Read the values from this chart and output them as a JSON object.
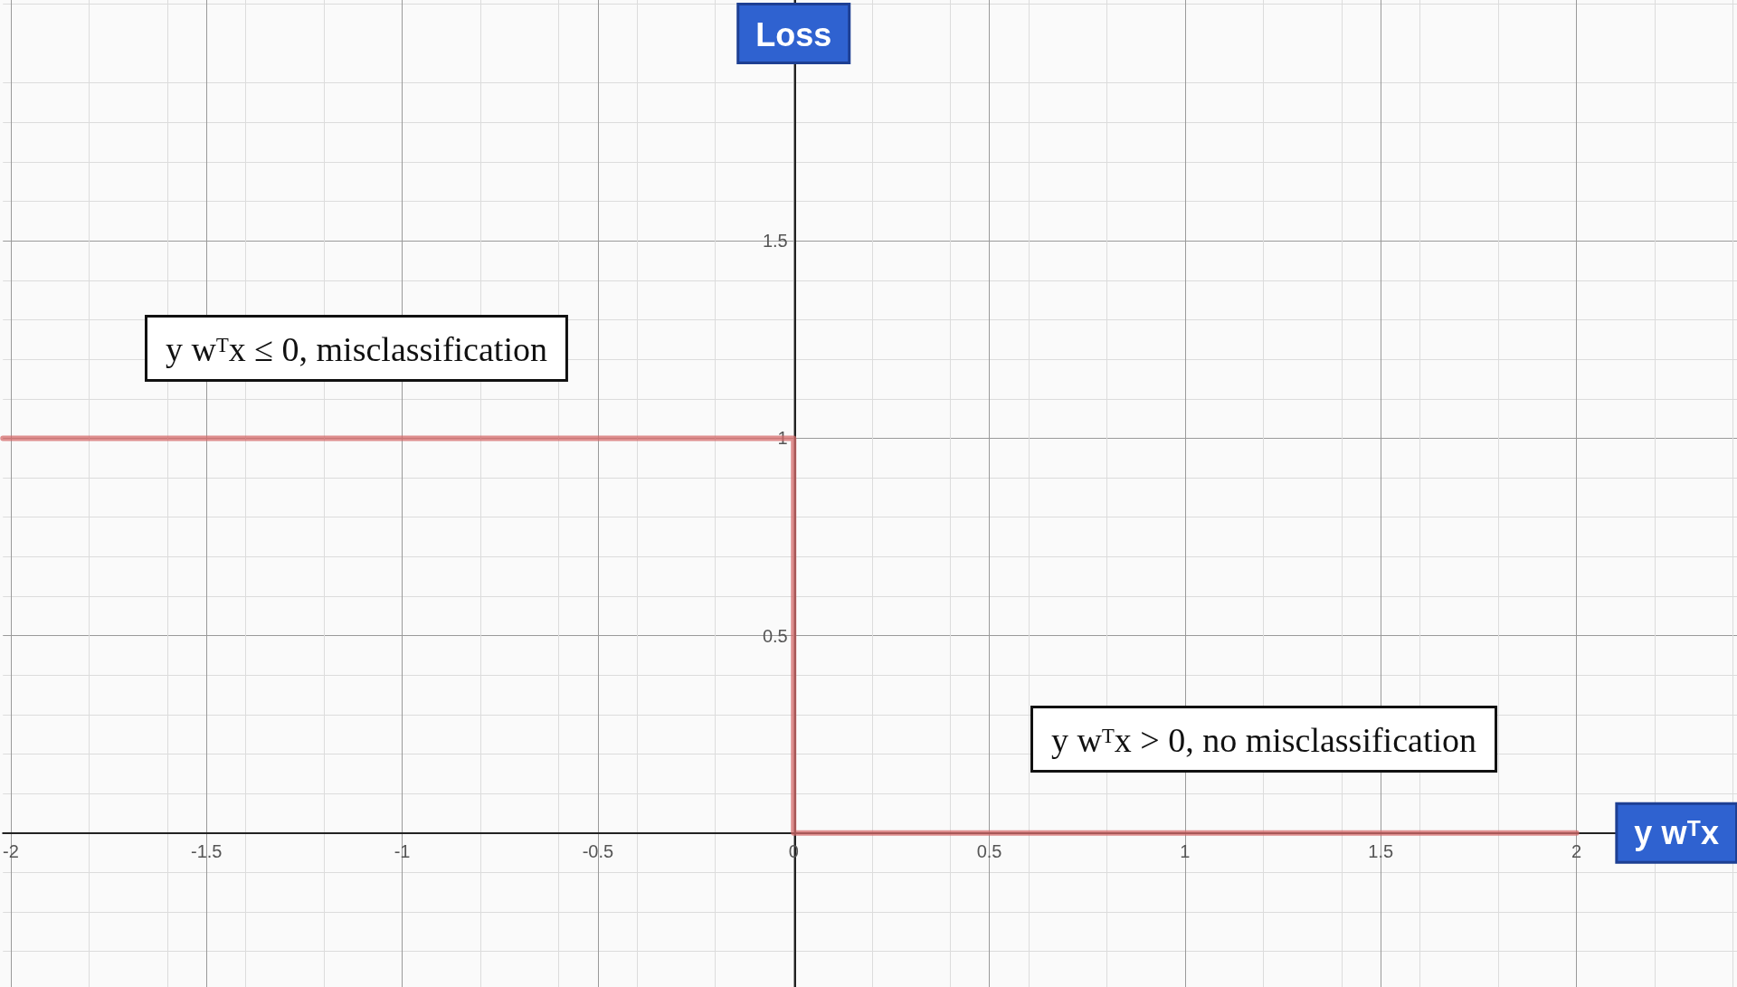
{
  "chart_data": {
    "type": "step",
    "xlabel": "y wᵀx",
    "ylabel": "Loss",
    "x": [
      -2.02,
      0,
      2
    ],
    "series": [
      {
        "color": "#d46a6a",
        "values": [
          1,
          0,
          0
        ]
      }
    ],
    "xlim": [
      -2.02,
      2.41
    ],
    "ylim": [
      -0.39,
      2.11
    ],
    "xticks": [
      -2,
      -1.5,
      -1,
      -0.5,
      0,
      0.5,
      1,
      1.5,
      2
    ],
    "yticks": [
      0.5,
      1,
      1.5
    ],
    "grid": true,
    "marker": "none",
    "line_style": "solid",
    "annotations": [
      "y wᵀx ≤ 0, misclassification",
      "y wᵀx > 0, no misclassification"
    ]
  }
}
